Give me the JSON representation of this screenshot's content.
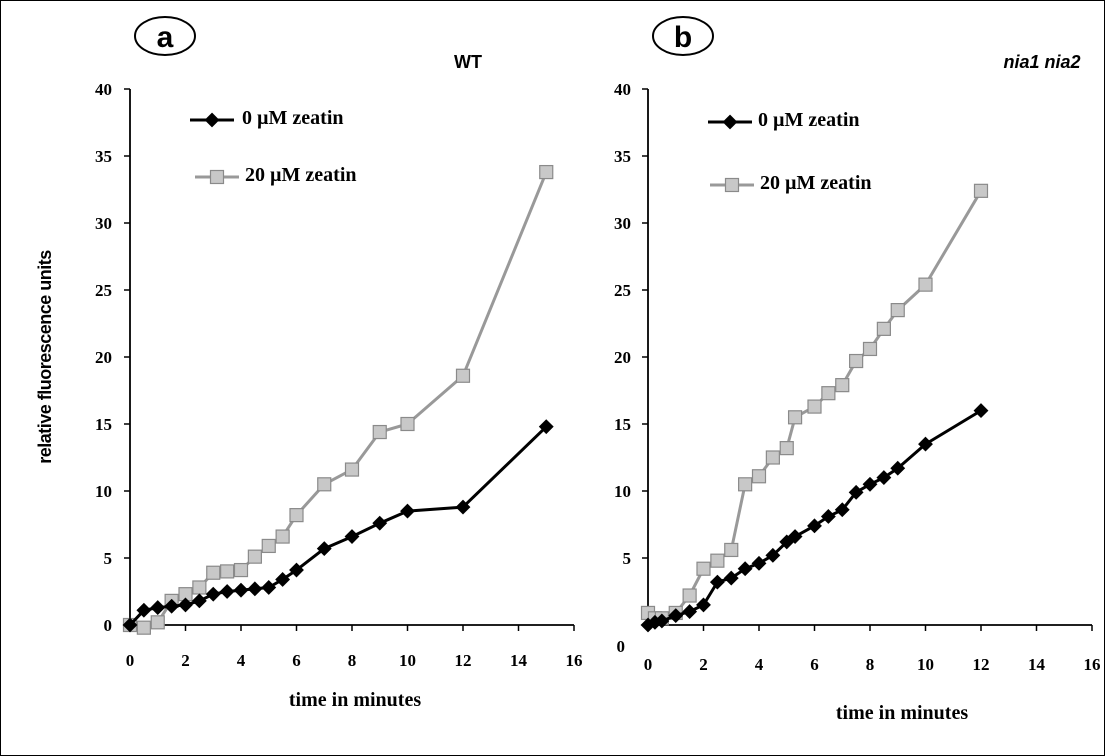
{
  "figure": {
    "ylabel": "relative fluorescence units"
  },
  "chart_data": [
    {
      "type": "line",
      "panel_label": "a",
      "title": "WT",
      "xlabel": "time in minutes",
      "ylabel": "",
      "xlim": [
        0,
        16
      ],
      "ylim": [
        0,
        40
      ],
      "xticks": [
        "0",
        "2",
        "4",
        "6",
        "8",
        "10",
        "12",
        "14",
        "16"
      ],
      "yticks": [
        "0",
        "5",
        "10",
        "15",
        "20",
        "25",
        "30",
        "35",
        "40"
      ],
      "legend_position": "top-left",
      "series": [
        {
          "name": "0 µM zeatin",
          "color": "#000000",
          "marker": "diamond",
          "points": [
            [
              0,
              0
            ],
            [
              0.5,
              1.1
            ],
            [
              1,
              1.3
            ],
            [
              1.5,
              1.4
            ],
            [
              2,
              1.5
            ],
            [
              2.5,
              1.8
            ],
            [
              3,
              2.3
            ],
            [
              3.5,
              2.5
            ],
            [
              4,
              2.6
            ],
            [
              4.5,
              2.7
            ],
            [
              5,
              2.8
            ],
            [
              5.5,
              3.4
            ],
            [
              6,
              4.1
            ],
            [
              7,
              5.7
            ],
            [
              8,
              6.6
            ],
            [
              9,
              7.6
            ],
            [
              10,
              8.5
            ],
            [
              12,
              8.8
            ],
            [
              15,
              14.8
            ]
          ]
        },
        {
          "name": "20 µM zeatin",
          "color": "#999999",
          "marker": "square",
          "points": [
            [
              0,
              0
            ],
            [
              0.5,
              -0.2
            ],
            [
              1,
              0.2
            ],
            [
              1.5,
              1.8
            ],
            [
              2,
              2.3
            ],
            [
              2.5,
              2.8
            ],
            [
              3,
              3.9
            ],
            [
              3.5,
              4.0
            ],
            [
              4,
              4.1
            ],
            [
              4.5,
              5.1
            ],
            [
              5,
              5.9
            ],
            [
              5.5,
              6.6
            ],
            [
              6,
              8.2
            ],
            [
              7,
              10.5
            ],
            [
              8,
              11.6
            ],
            [
              9,
              14.4
            ],
            [
              10,
              15.0
            ],
            [
              12,
              18.6
            ],
            [
              15,
              33.8
            ]
          ]
        }
      ]
    },
    {
      "type": "line",
      "panel_label": "b",
      "title": "nia1 nia2",
      "xlabel": "time in minutes",
      "ylabel": "",
      "xlim": [
        0,
        16
      ],
      "ylim": [
        0,
        40
      ],
      "xticks": [
        "0",
        "2",
        "4",
        "6",
        "8",
        "10",
        "12",
        "14",
        "16"
      ],
      "yticks": [
        "0",
        "5",
        "10",
        "15",
        "20",
        "25",
        "30",
        "35",
        "40"
      ],
      "legend_position": "top-left",
      "series": [
        {
          "name": "0 µM zeatin",
          "color": "#000000",
          "marker": "diamond",
          "points": [
            [
              0,
              0
            ],
            [
              0.25,
              0.2
            ],
            [
              0.5,
              0.3
            ],
            [
              1,
              0.7
            ],
            [
              1.5,
              1.0
            ],
            [
              2,
              1.5
            ],
            [
              2.5,
              3.2
            ],
            [
              3,
              3.5
            ],
            [
              3.5,
              4.2
            ],
            [
              4,
              4.6
            ],
            [
              4.5,
              5.2
            ],
            [
              5,
              6.2
            ],
            [
              5.3,
              6.6
            ],
            [
              6,
              7.4
            ],
            [
              6.5,
              8.1
            ],
            [
              7,
              8.6
            ],
            [
              7.5,
              9.9
            ],
            [
              8,
              10.5
            ],
            [
              8.5,
              11.0
            ],
            [
              9,
              11.7
            ],
            [
              10,
              13.5
            ],
            [
              12,
              16.0
            ]
          ]
        },
        {
          "name": "20 µM zeatin",
          "color": "#999999",
          "marker": "square",
          "points": [
            [
              0,
              0.9
            ],
            [
              0.25,
              0.5
            ],
            [
              0.5,
              0.5
            ],
            [
              1,
              0.9
            ],
            [
              1.5,
              2.2
            ],
            [
              2,
              4.2
            ],
            [
              2.5,
              4.8
            ],
            [
              3,
              5.6
            ],
            [
              3.5,
              10.5
            ],
            [
              4,
              11.1
            ],
            [
              4.5,
              12.5
            ],
            [
              5,
              13.2
            ],
            [
              5.3,
              15.5
            ],
            [
              6,
              16.3
            ],
            [
              6.5,
              17.3
            ],
            [
              7,
              17.9
            ],
            [
              7.5,
              19.7
            ],
            [
              8,
              20.6
            ],
            [
              8.5,
              22.1
            ],
            [
              9,
              23.5
            ],
            [
              10,
              25.4
            ],
            [
              12,
              32.4
            ]
          ]
        }
      ]
    }
  ]
}
